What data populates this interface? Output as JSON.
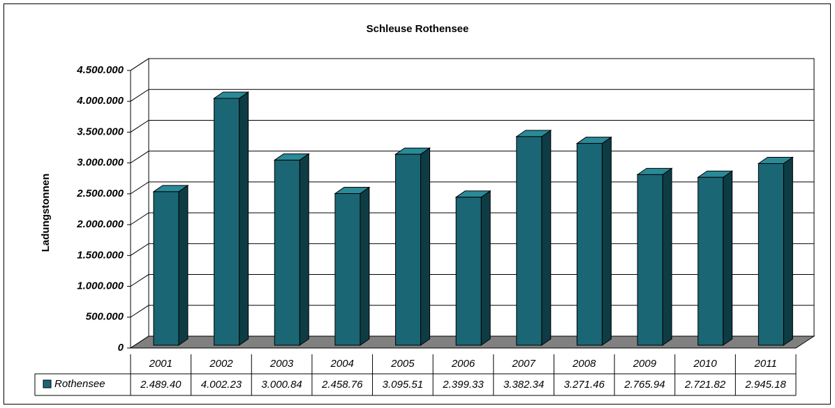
{
  "chart_data": {
    "type": "bar3d",
    "title": "Schleuse Rothensee",
    "y_label": "Ladungstonnen",
    "categories": [
      "2001",
      "2002",
      "2003",
      "2004",
      "2005",
      "2006",
      "2007",
      "2008",
      "2009",
      "2010",
      "2011"
    ],
    "series": [
      {
        "name": "Rothensee",
        "color": "#1a6674",
        "values": [
          2489400,
          4002230,
          3000840,
          2458760,
          3095510,
          2399330,
          3382340,
          3271460,
          2765940,
          2721820,
          2945180
        ],
        "value_labels": [
          "2.489.40",
          "4.002.23",
          "3.000.84",
          "2.458.76",
          "3.095.51",
          "2.399.33",
          "3.382.34",
          "3.271.46",
          "2.765.94",
          "2.721.82",
          "2.945.18"
        ]
      }
    ],
    "ylim": [
      0,
      4500000
    ],
    "yticks": [
      0,
      {
        "value": 500000,
        "label": "500.000"
      },
      {
        "value": 1000000,
        "label": "1.000.000"
      },
      {
        "value": 1500000,
        "label": "1.500.000"
      },
      {
        "value": 2000000,
        "label": "2.000.000"
      },
      {
        "value": 2500000,
        "label": "2.500.000"
      },
      {
        "value": 3000000,
        "label": "3.000.000"
      },
      {
        "value": 3500000,
        "label": "3.500.000"
      },
      {
        "value": 4000000,
        "label": "4.000.000"
      },
      {
        "value": 4500000,
        "label": "4.500.000"
      }
    ],
    "grid": true
  }
}
